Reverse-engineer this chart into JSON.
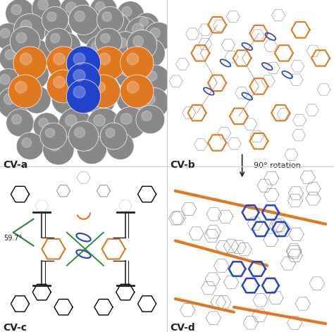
{
  "figure_size": [
    4.74,
    4.71
  ],
  "dpi": 100,
  "background": "#ffffff",
  "panel_labels": [
    "CV-a",
    "CV-b",
    "CV-c",
    "CV-d"
  ],
  "label_fontsize": 10,
  "label_bold": true,
  "rotation_label": "90° rotation",
  "rotation_fontsize": 8,
  "angle_label": "59.7°",
  "divider_color": "#cccccc",
  "divider_lw": 0.8,
  "panel_bg": "#f5f5f5",
  "gray_atom": "#888888",
  "orange_color": "#e07820",
  "blue_color": "#2244cc",
  "green_color": "#228833",
  "dark_color": "#222222",
  "light_gray": "#bbbbbb"
}
